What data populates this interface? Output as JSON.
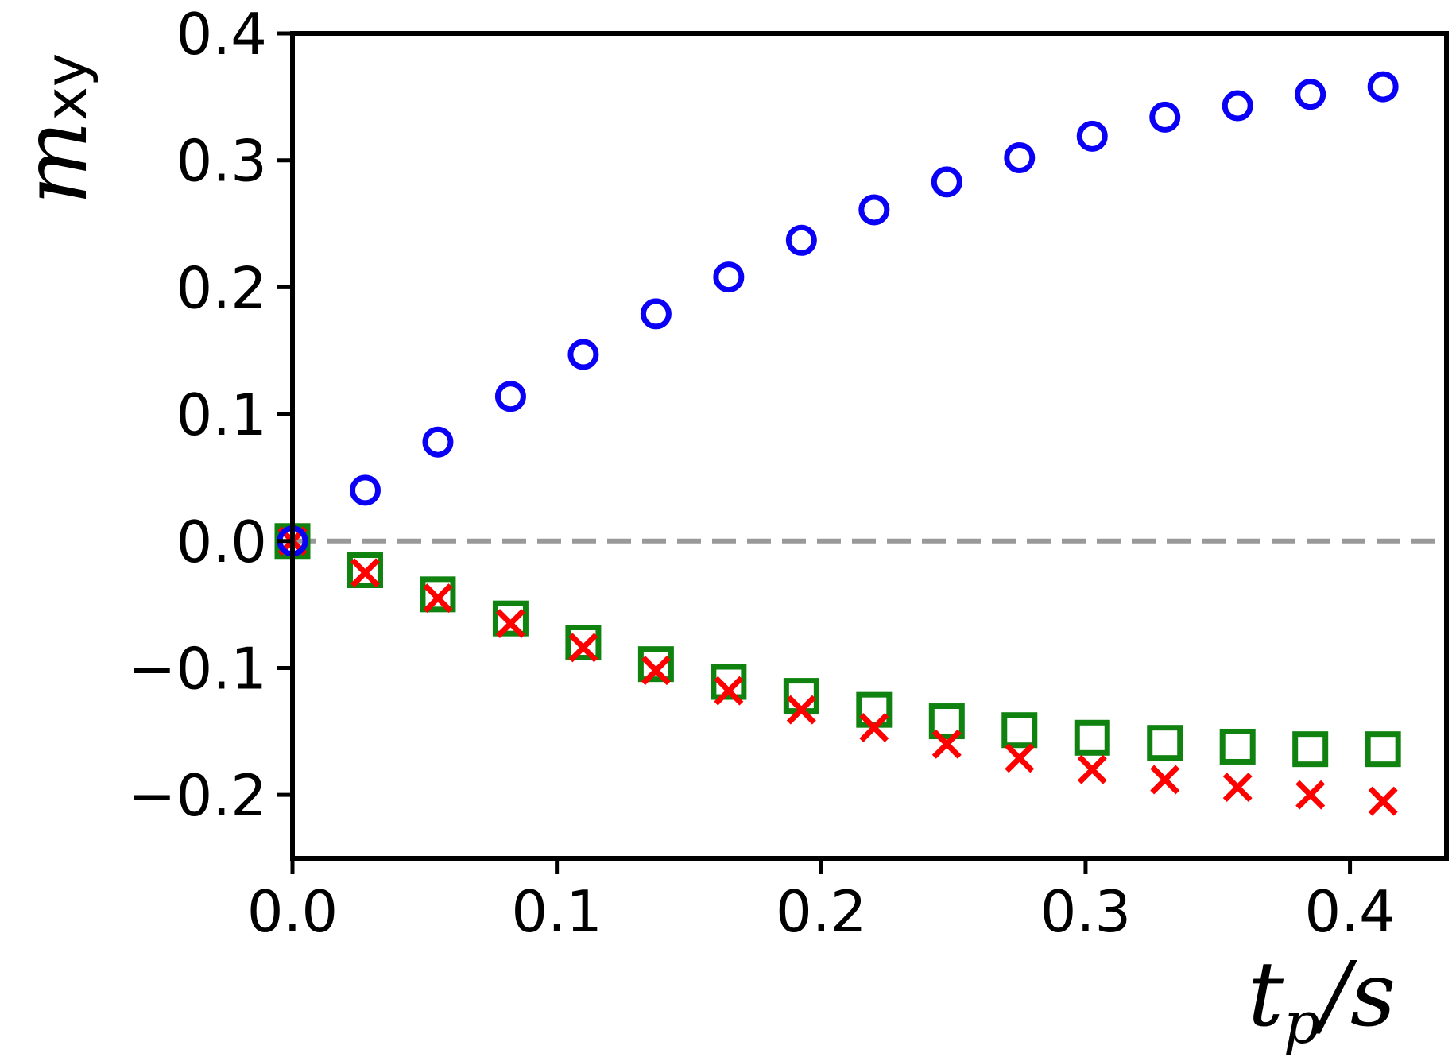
{
  "chart_data": {
    "type": "scatter",
    "xlabel_main": "t",
    "xlabel_sub": "p",
    "xlabel_tail": "/s",
    "ylabel_main": "m",
    "ylabel_sub": "xy",
    "xlim": [
      0.0,
      0.4365
    ],
    "ylim": [
      -0.25,
      0.4
    ],
    "xticks": [
      0.0,
      0.1,
      0.2,
      0.3,
      0.4
    ],
    "xtick_labels": [
      "0.0",
      "0.1",
      "0.2",
      "0.3",
      "0.4"
    ],
    "yticks": [
      -0.2,
      -0.1,
      0.0,
      0.1,
      0.2,
      0.3,
      0.4
    ],
    "ytick_labels": [
      "−0.2",
      "−0.1",
      "0.0",
      "0.1",
      "0.2",
      "0.3",
      "0.4"
    ],
    "reference_line": {
      "y": 0.0,
      "style": "dashed",
      "color": "#999999"
    },
    "x": [
      0.0,
      0.0275,
      0.055,
      0.0825,
      0.11,
      0.1375,
      0.165,
      0.1925,
      0.22,
      0.2475,
      0.275,
      0.3025,
      0.33,
      0.3575,
      0.385,
      0.4125
    ],
    "series": [
      {
        "marker": "circle",
        "color": "#0a00f5",
        "values": [
          0.0,
          0.04,
          0.078,
          0.114,
          0.147,
          0.179,
          0.208,
          0.237,
          0.261,
          0.283,
          0.302,
          0.319,
          0.334,
          0.343,
          0.352,
          0.358
        ]
      },
      {
        "marker": "square",
        "color": "#0f820f",
        "values": [
          0.0,
          -0.023,
          -0.042,
          -0.061,
          -0.08,
          -0.097,
          -0.111,
          -0.122,
          -0.133,
          -0.142,
          -0.149,
          -0.155,
          -0.159,
          -0.162,
          -0.164,
          -0.164
        ]
      },
      {
        "marker": "x",
        "color": "#ff0000",
        "values": [
          0.0,
          -0.025,
          -0.045,
          -0.065,
          -0.084,
          -0.102,
          -0.118,
          -0.133,
          -0.147,
          -0.16,
          -0.171,
          -0.18,
          -0.188,
          -0.194,
          -0.2,
          -0.205
        ]
      }
    ]
  }
}
